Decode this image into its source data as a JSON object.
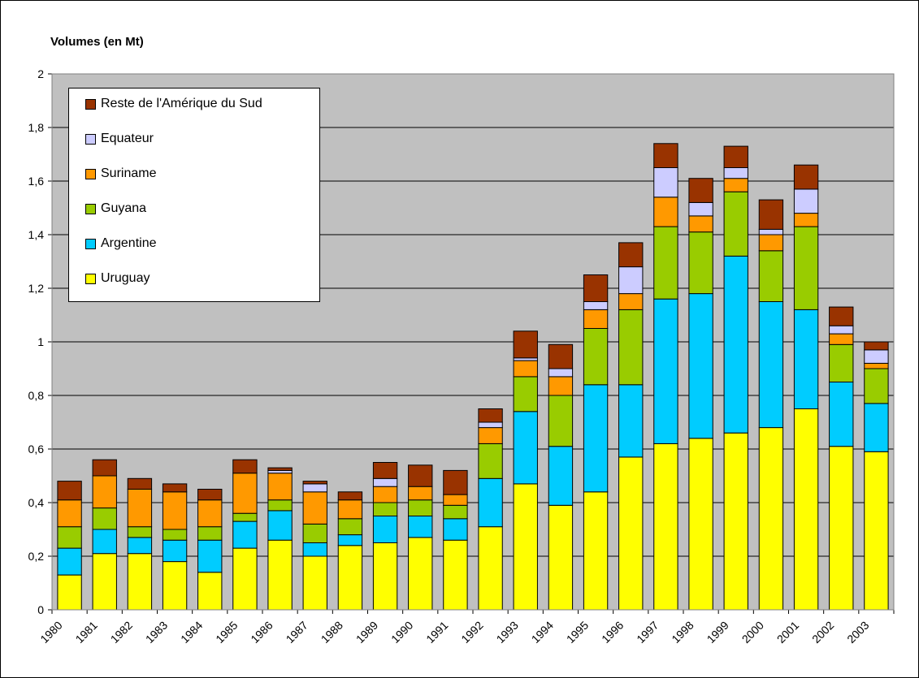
{
  "chart_data": {
    "type": "bar",
    "stacked": true,
    "title": "Volumes (en Mt)",
    "xlabel": "",
    "ylabel": "",
    "ylim": [
      0,
      2
    ],
    "yticks": [
      0,
      0.2,
      0.4,
      0.6,
      0.8,
      1,
      1.2,
      1.4,
      1.6,
      1.8,
      2
    ],
    "ytick_labels": [
      "0",
      "0,2",
      "0,4",
      "0,6",
      "0,8",
      "1",
      "1,2",
      "1,4",
      "1,6",
      "1,8",
      "2"
    ],
    "grid": true,
    "legend_position": "top-left",
    "plot_background": "#c0c0c0",
    "categories": [
      "1980",
      "1981",
      "1982",
      "1983",
      "1984",
      "1985",
      "1986",
      "1987",
      "1988",
      "1989",
      "1990",
      "1991",
      "1992",
      "1993",
      "1994",
      "1995",
      "1996",
      "1997",
      "1998",
      "1999",
      "2000",
      "2001",
      "2002",
      "2003"
    ],
    "series": [
      {
        "name": "Uruguay",
        "color": "#ffff00",
        "values": [
          0.13,
          0.21,
          0.21,
          0.18,
          0.14,
          0.23,
          0.26,
          0.2,
          0.24,
          0.25,
          0.27,
          0.26,
          0.31,
          0.47,
          0.39,
          0.44,
          0.57,
          0.62,
          0.64,
          0.66,
          0.68,
          0.75,
          0.61,
          0.59
        ]
      },
      {
        "name": "Argentine",
        "color": "#00ccff",
        "values": [
          0.1,
          0.09,
          0.06,
          0.08,
          0.12,
          0.1,
          0.11,
          0.05,
          0.04,
          0.1,
          0.08,
          0.08,
          0.18,
          0.27,
          0.22,
          0.4,
          0.27,
          0.54,
          0.54,
          0.66,
          0.47,
          0.37,
          0.24,
          0.18
        ]
      },
      {
        "name": "Guyana",
        "color": "#99cc00",
        "values": [
          0.08,
          0.08,
          0.04,
          0.04,
          0.05,
          0.03,
          0.04,
          0.07,
          0.06,
          0.05,
          0.06,
          0.05,
          0.13,
          0.13,
          0.19,
          0.21,
          0.28,
          0.27,
          0.23,
          0.24,
          0.19,
          0.31,
          0.14,
          0.13
        ]
      },
      {
        "name": "Suriname",
        "color": "#ff9900",
        "values": [
          0.1,
          0.12,
          0.14,
          0.14,
          0.1,
          0.15,
          0.1,
          0.12,
          0.07,
          0.06,
          0.05,
          0.04,
          0.06,
          0.06,
          0.07,
          0.07,
          0.06,
          0.11,
          0.06,
          0.05,
          0.06,
          0.05,
          0.04,
          0.02
        ]
      },
      {
        "name": "Equateur",
        "color": "#ccccff",
        "values": [
          0.0,
          0.0,
          0.0,
          0.0,
          0.0,
          0.0,
          0.01,
          0.03,
          0.0,
          0.03,
          0.0,
          0.0,
          0.02,
          0.01,
          0.03,
          0.03,
          0.1,
          0.11,
          0.05,
          0.04,
          0.02,
          0.09,
          0.03,
          0.05
        ]
      },
      {
        "name": "Reste de l'Amérique du Sud",
        "color": "#993300",
        "values": [
          0.07,
          0.06,
          0.04,
          0.03,
          0.04,
          0.05,
          0.01,
          0.01,
          0.03,
          0.06,
          0.08,
          0.09,
          0.05,
          0.1,
          0.09,
          0.1,
          0.09,
          0.09,
          0.09,
          0.08,
          0.11,
          0.09,
          0.07,
          0.03
        ]
      }
    ]
  }
}
